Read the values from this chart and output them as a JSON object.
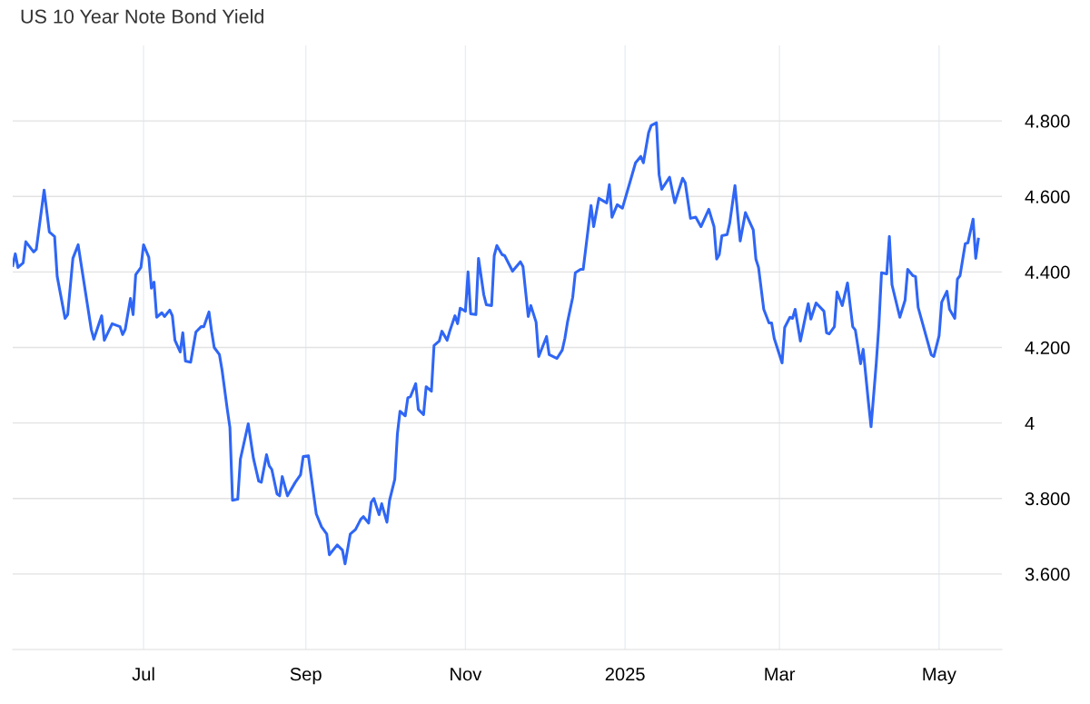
{
  "chart_data": {
    "type": "line",
    "title": "US 10 Year Note Bond Yield",
    "x": [
      "2024-05-12",
      "2024-05-13",
      "2024-05-14",
      "2024-05-16",
      "2024-05-17",
      "2024-05-20",
      "2024-05-21",
      "2024-05-24",
      "2024-05-26",
      "2024-05-28",
      "2024-05-29",
      "2024-06-01",
      "2024-06-02",
      "2024-06-04",
      "2024-06-06",
      "2024-06-11",
      "2024-06-12",
      "2024-06-15",
      "2024-06-16",
      "2024-06-19",
      "2024-06-22",
      "2024-06-23",
      "2024-06-24",
      "2024-06-26",
      "2024-06-27",
      "2024-06-28",
      "2024-06-30",
      "2024-07-01",
      "2024-07-03",
      "2024-07-04",
      "2024-07-05",
      "2024-07-06",
      "2024-07-08",
      "2024-07-09",
      "2024-07-11",
      "2024-07-12",
      "2024-07-13",
      "2024-07-15",
      "2024-07-16",
      "2024-07-17",
      "2024-07-19",
      "2024-07-21",
      "2024-07-23",
      "2024-07-24",
      "2024-07-26",
      "2024-07-27",
      "2024-07-28",
      "2024-07-30",
      "2024-07-31",
      "2024-08-02",
      "2024-08-03",
      "2024-08-04",
      "2024-08-06",
      "2024-08-07",
      "2024-08-10",
      "2024-08-12",
      "2024-08-14",
      "2024-08-15",
      "2024-08-17",
      "2024-08-18",
      "2024-08-19",
      "2024-08-21",
      "2024-08-22",
      "2024-08-23",
      "2024-08-25",
      "2024-08-28",
      "2024-08-30",
      "2024-08-31",
      "2024-09-02",
      "2024-09-05",
      "2024-09-07",
      "2024-09-09",
      "2024-09-10",
      "2024-09-13",
      "2024-09-15",
      "2024-09-16",
      "2024-09-18",
      "2024-09-20",
      "2024-09-22",
      "2024-09-23",
      "2024-09-25",
      "2024-09-26",
      "2024-09-27",
      "2024-09-29",
      "2024-09-30",
      "2024-10-02",
      "2024-10-03",
      "2024-10-05",
      "2024-10-06",
      "2024-10-07",
      "2024-10-09",
      "2024-10-10",
      "2024-10-11",
      "2024-10-13",
      "2024-10-14",
      "2024-10-16",
      "2024-10-17",
      "2024-10-19",
      "2024-10-20",
      "2024-10-22",
      "2024-10-23",
      "2024-10-25",
      "2024-10-26",
      "2024-10-28",
      "2024-10-29",
      "2024-10-30",
      "2024-11-01",
      "2024-11-02",
      "2024-11-03",
      "2024-11-05",
      "2024-11-06",
      "2024-11-08",
      "2024-11-09",
      "2024-11-11",
      "2024-11-12",
      "2024-11-13",
      "2024-11-15",
      "2024-11-16",
      "2024-11-19",
      "2024-11-22",
      "2024-11-23",
      "2024-11-25",
      "2024-11-26",
      "2024-11-28",
      "2024-11-29",
      "2024-12-02",
      "2024-12-03",
      "2024-12-06",
      "2024-12-08",
      "2024-12-09",
      "2024-12-10",
      "2024-12-12",
      "2024-12-13",
      "2024-12-15",
      "2024-12-16",
      "2024-12-18",
      "2024-12-19",
      "2024-12-20",
      "2024-12-22",
      "2024-12-25",
      "2024-12-26",
      "2024-12-27",
      "2024-12-29",
      "2024-12-31",
      "2025-01-03",
      "2025-01-05",
      "2025-01-07",
      "2025-01-08",
      "2025-01-10",
      "2025-01-11",
      "2025-01-13",
      "2025-01-14",
      "2025-01-15",
      "2025-01-18",
      "2025-01-20",
      "2025-01-23",
      "2025-01-24",
      "2025-01-26",
      "2025-01-28",
      "2025-01-30",
      "2025-02-02",
      "2025-02-04",
      "2025-02-05",
      "2025-02-06",
      "2025-02-07",
      "2025-02-09",
      "2025-02-10",
      "2025-02-12",
      "2025-02-14",
      "2025-02-16",
      "2025-02-19",
      "2025-02-20",
      "2025-02-21",
      "2025-02-23",
      "2025-02-25",
      "2025-02-26",
      "2025-02-27",
      "2025-03-02",
      "2025-03-03",
      "2025-03-05",
      "2025-03-06",
      "2025-03-07",
      "2025-03-09",
      "2025-03-11",
      "2025-03-12",
      "2025-03-13",
      "2025-03-15",
      "2025-03-18",
      "2025-03-19",
      "2025-03-20",
      "2025-03-22",
      "2025-03-23",
      "2025-03-25",
      "2025-03-27",
      "2025-03-29",
      "2025-03-30",
      "2025-04-01",
      "2025-04-02",
      "2025-04-04",
      "2025-04-05",
      "2025-04-07",
      "2025-04-08",
      "2025-04-09",
      "2025-04-11",
      "2025-04-12",
      "2025-04-13",
      "2025-04-16",
      "2025-04-18",
      "2025-04-19",
      "2025-04-21",
      "2025-04-22",
      "2025-04-23",
      "2025-04-26",
      "2025-04-28",
      "2025-04-29",
      "2025-05-01",
      "2025-05-02",
      "2025-05-04",
      "2025-05-05",
      "2025-05-07",
      "2025-05-08",
      "2025-05-09",
      "2025-05-11",
      "2025-05-12",
      "2025-05-14",
      "2025-05-15",
      "2025-05-16"
    ],
    "series": [
      {
        "color": "#2f66f5",
        "values": [
          4.417,
          4.448,
          4.412,
          4.424,
          4.48,
          4.453,
          4.46,
          4.617,
          4.506,
          4.494,
          4.388,
          4.277,
          4.287,
          4.436,
          4.472,
          4.248,
          4.222,
          4.284,
          4.219,
          4.263,
          4.255,
          4.234,
          4.248,
          4.33,
          4.287,
          4.393,
          4.412,
          4.472,
          4.439,
          4.357,
          4.373,
          4.28,
          4.292,
          4.282,
          4.299,
          4.284,
          4.219,
          4.188,
          4.239,
          4.164,
          4.161,
          4.241,
          4.255,
          4.255,
          4.294,
          4.243,
          4.2,
          4.181,
          4.14,
          4.036,
          3.988,
          3.795,
          3.798,
          3.904,
          3.998,
          3.906,
          3.846,
          3.843,
          3.916,
          3.887,
          3.877,
          3.812,
          3.807,
          3.858,
          3.807,
          3.843,
          3.863,
          3.911,
          3.913,
          3.759,
          3.725,
          3.706,
          3.651,
          3.677,
          3.663,
          3.627,
          3.706,
          3.718,
          3.745,
          3.752,
          3.735,
          3.79,
          3.8,
          3.757,
          3.786,
          3.737,
          3.795,
          3.851,
          3.971,
          4.031,
          4.019,
          4.067,
          4.07,
          4.104,
          4.036,
          4.022,
          4.096,
          4.084,
          4.205,
          4.217,
          4.243,
          4.219,
          4.243,
          4.284,
          4.263,
          4.304,
          4.296,
          4.4,
          4.289,
          4.287,
          4.436,
          4.34,
          4.313,
          4.311,
          4.443,
          4.47,
          4.446,
          4.443,
          4.402,
          4.427,
          4.414,
          4.282,
          4.311,
          4.267,
          4.176,
          4.229,
          4.181,
          4.171,
          4.193,
          4.224,
          4.267,
          4.333,
          4.398,
          4.407,
          4.407,
          4.52,
          4.576,
          4.52,
          4.595,
          4.583,
          4.631,
          4.545,
          4.578,
          4.569,
          4.641,
          4.689,
          4.706,
          4.689,
          4.769,
          4.788,
          4.795,
          4.658,
          4.619,
          4.651,
          4.583,
          4.648,
          4.636,
          4.542,
          4.545,
          4.52,
          4.566,
          4.52,
          4.434,
          4.446,
          4.496,
          4.499,
          4.53,
          4.629,
          4.482,
          4.557,
          4.511,
          4.434,
          4.412,
          4.301,
          4.265,
          4.265,
          4.224,
          4.159,
          4.253,
          4.28,
          4.277,
          4.301,
          4.217,
          4.284,
          4.316,
          4.275,
          4.318,
          4.296,
          4.239,
          4.236,
          4.255,
          4.347,
          4.311,
          4.371,
          4.255,
          4.246,
          4.157,
          4.195,
          4.055,
          3.99,
          4.159,
          4.26,
          4.398,
          4.395,
          4.494,
          4.366,
          4.28,
          4.325,
          4.407,
          4.39,
          4.388,
          4.306,
          4.231,
          4.181,
          4.176,
          4.231,
          4.32,
          4.349,
          4.301,
          4.277,
          4.381,
          4.39,
          4.475,
          4.477,
          4.54,
          4.436,
          4.487
        ]
      }
    ],
    "xlim": [
      "2024-05-12",
      "2025-05-25"
    ],
    "xticks": [
      {
        "value": "2024-07-01",
        "label": "Jul"
      },
      {
        "value": "2024-09-01",
        "label": "Sep"
      },
      {
        "value": "2024-11-01",
        "label": "Nov"
      },
      {
        "value": "2025-01-01",
        "label": "2025"
      },
      {
        "value": "2025-03-01",
        "label": "Mar"
      },
      {
        "value": "2025-05-01",
        "label": "May"
      }
    ],
    "ylim": [
      3.4,
      5.0
    ],
    "yticks": [
      {
        "value": 3.6,
        "label": "3.600"
      },
      {
        "value": 3.8,
        "label": "3.800"
      },
      4,
      {
        "value": 4.2,
        "label": "4.200"
      },
      {
        "value": 4.4,
        "label": "4.400"
      },
      {
        "value": 4.6,
        "label": "4.600"
      },
      {
        "value": 4.8,
        "label": "4.800"
      }
    ],
    "grid": true,
    "marker": "none",
    "line_style": "solid"
  }
}
